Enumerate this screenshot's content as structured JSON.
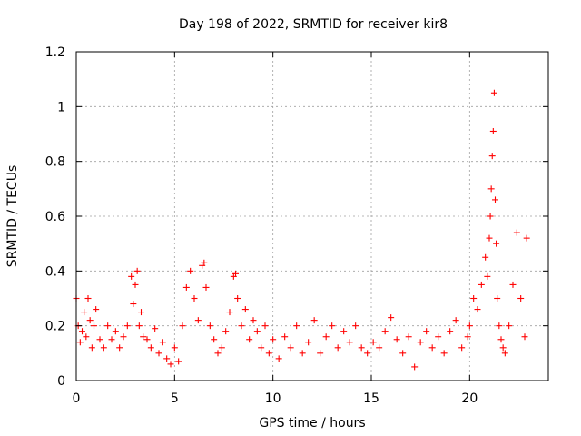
{
  "chart_data": {
    "type": "scatter",
    "title": "Day 198 of 2022, SRMTID for receiver kir8",
    "xlabel": "GPS time / hours",
    "ylabel": "SRMTID / TECUs",
    "xlim": [
      0,
      24
    ],
    "ylim": [
      0,
      1.2
    ],
    "x_ticks": [
      0,
      5,
      10,
      15,
      20
    ],
    "x_tick_labels": [
      "0",
      "5",
      "10",
      "15",
      "20"
    ],
    "y_ticks": [
      0,
      0.2,
      0.4,
      0.6,
      0.8,
      1.0,
      1.2
    ],
    "y_tick_labels": [
      "0",
      "0.2",
      "0.4",
      "0.6",
      "0.8",
      "1",
      "1.2"
    ],
    "grid": true,
    "marker": "+",
    "color": "#ff0000",
    "series": [
      {
        "name": "SRMTID",
        "x": [
          0.0,
          0.1,
          0.2,
          0.3,
          0.4,
          0.5,
          0.6,
          0.7,
          0.8,
          0.9,
          1.0,
          1.2,
          1.4,
          1.6,
          1.8,
          2.0,
          2.2,
          2.4,
          2.6,
          2.8,
          2.9,
          3.0,
          3.1,
          3.2,
          3.3,
          3.4,
          3.6,
          3.8,
          4.0,
          4.2,
          4.4,
          4.6,
          4.8,
          5.0,
          5.2,
          5.4,
          5.6,
          5.8,
          6.0,
          6.2,
          6.4,
          6.5,
          6.6,
          6.8,
          7.0,
          7.2,
          7.4,
          7.6,
          7.8,
          8.0,
          8.1,
          8.2,
          8.4,
          8.6,
          8.8,
          9.0,
          9.2,
          9.4,
          9.6,
          9.8,
          10.0,
          10.3,
          10.6,
          10.9,
          11.2,
          11.5,
          11.8,
          12.1,
          12.4,
          12.7,
          13.0,
          13.3,
          13.6,
          13.9,
          14.2,
          14.5,
          14.8,
          15.1,
          15.4,
          15.7,
          16.0,
          16.3,
          16.6,
          16.9,
          17.2,
          17.5,
          17.8,
          18.1,
          18.4,
          18.7,
          19.0,
          19.3,
          19.6,
          19.9,
          20.0,
          20.2,
          20.4,
          20.6,
          20.8,
          20.9,
          21.0,
          21.05,
          21.1,
          21.15,
          21.2,
          21.25,
          21.3,
          21.35,
          21.4,
          21.5,
          21.6,
          21.7,
          21.8,
          22.0,
          22.2,
          22.4,
          22.6,
          22.8,
          22.9
        ],
        "values": [
          0.3,
          0.2,
          0.14,
          0.18,
          0.25,
          0.16,
          0.3,
          0.22,
          0.12,
          0.2,
          0.26,
          0.15,
          0.12,
          0.2,
          0.15,
          0.18,
          0.12,
          0.16,
          0.2,
          0.38,
          0.28,
          0.35,
          0.4,
          0.2,
          0.25,
          0.16,
          0.15,
          0.12,
          0.19,
          0.1,
          0.14,
          0.08,
          0.06,
          0.12,
          0.07,
          0.2,
          0.34,
          0.4,
          0.3,
          0.22,
          0.42,
          0.43,
          0.34,
          0.2,
          0.15,
          0.1,
          0.12,
          0.18,
          0.25,
          0.38,
          0.39,
          0.3,
          0.2,
          0.26,
          0.15,
          0.22,
          0.18,
          0.12,
          0.2,
          0.1,
          0.15,
          0.08,
          0.16,
          0.12,
          0.2,
          0.1,
          0.14,
          0.22,
          0.1,
          0.16,
          0.2,
          0.12,
          0.18,
          0.14,
          0.2,
          0.12,
          0.1,
          0.14,
          0.12,
          0.18,
          0.23,
          0.15,
          0.1,
          0.16,
          0.05,
          0.14,
          0.18,
          0.12,
          0.16,
          0.1,
          0.18,
          0.22,
          0.12,
          0.16,
          0.2,
          0.3,
          0.26,
          0.35,
          0.45,
          0.38,
          0.52,
          0.6,
          0.7,
          0.82,
          0.91,
          1.05,
          0.66,
          0.5,
          0.3,
          0.2,
          0.15,
          0.12,
          0.1,
          0.2,
          0.35,
          0.54,
          0.3,
          0.16,
          0.52
        ]
      }
    ]
  }
}
